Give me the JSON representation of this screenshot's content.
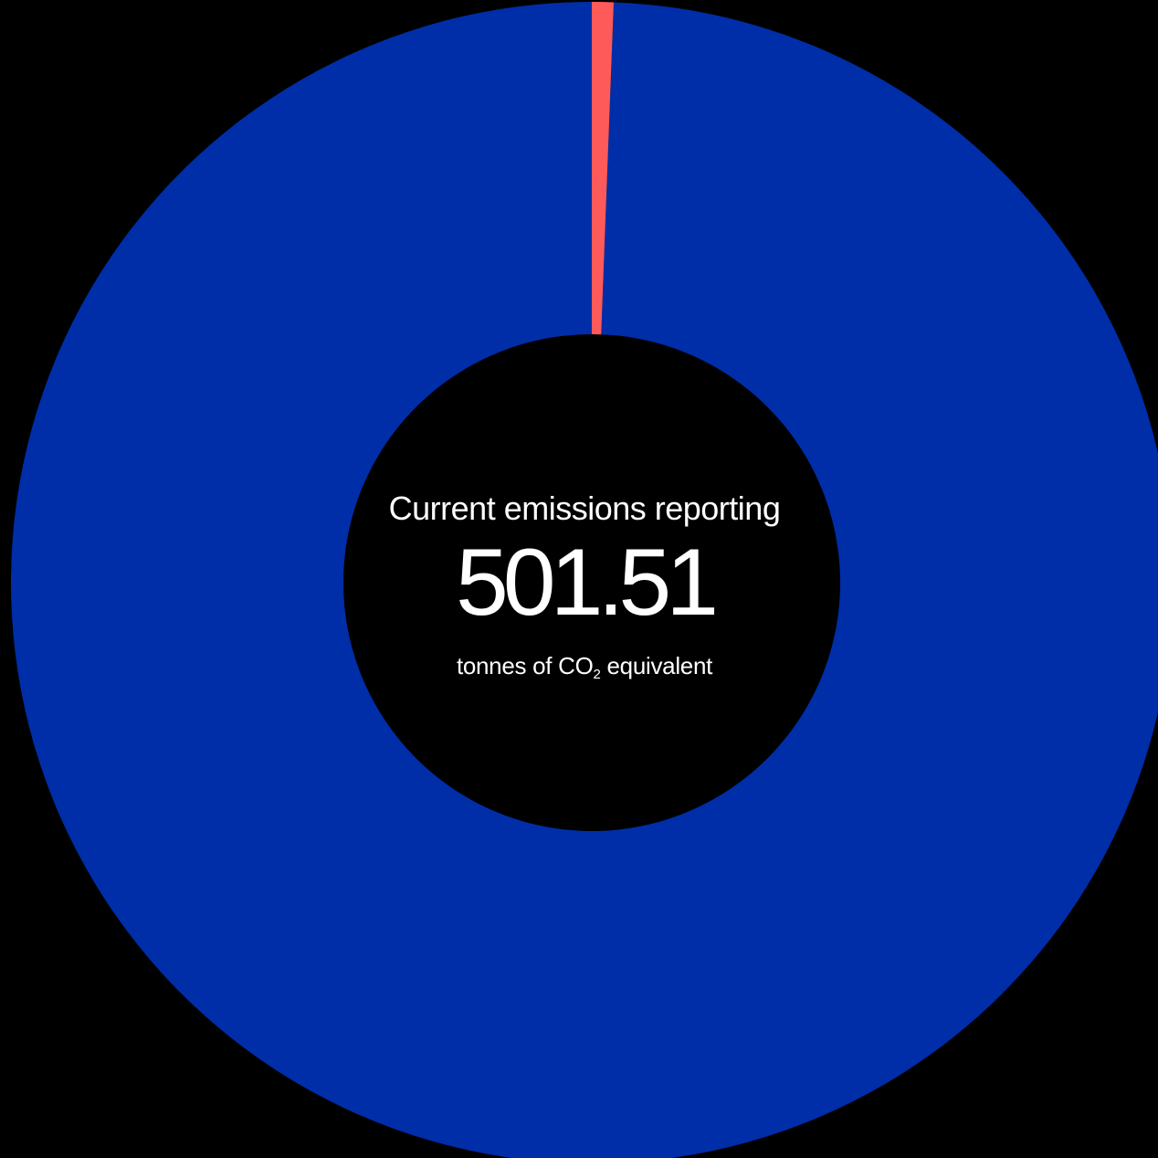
{
  "center": {
    "label": "Current emissions reporting",
    "value": "501.51",
    "unit_prefix": "tonnes of CO",
    "unit_subscript": "2",
    "unit_suffix": " equivalent"
  },
  "chart_data": {
    "type": "pie",
    "donut": true,
    "title": "",
    "total": 501.51,
    "slices": [
      {
        "value": 498.5,
        "color": "#002ea8"
      },
      {
        "value": 3.01,
        "color": "#ff5a5a"
      }
    ],
    "start_angle_deg": 0,
    "direction": "counterclockwise",
    "background": "#000000"
  }
}
